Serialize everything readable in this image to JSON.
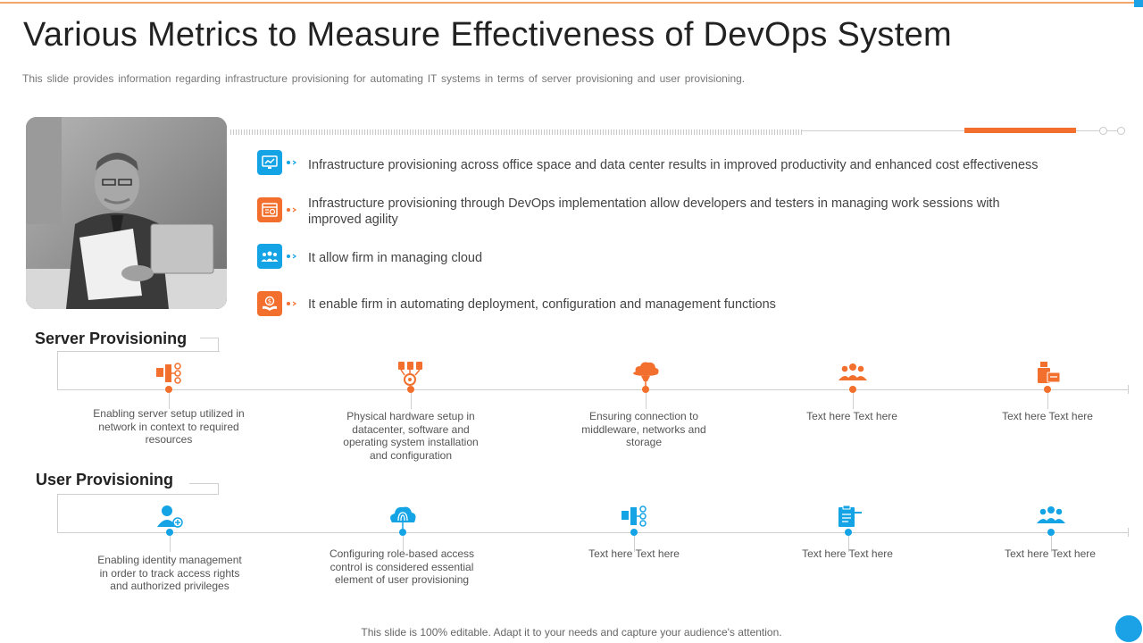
{
  "header": {
    "title": "Various Metrics to Measure Effectiveness of DevOps System",
    "subtitle": "This slide provides information regarding infrastructure provisioning for automating IT systems in terms of server provisioning and user provisioning."
  },
  "bullets": [
    {
      "icon": "monitor-chart-icon",
      "color": "#14a4e6",
      "text": "Infrastructure provisioning across office space and data center results in improved productivity and enhanced cost effectiveness"
    },
    {
      "icon": "browser-settings-icon",
      "color": "#f26f2d",
      "text": "Infrastructure provisioning through DevOps implementation allow developers and testers in managing work sessions with improved agility"
    },
    {
      "icon": "team-icon",
      "color": "#14a4e6",
      "text": "It allow firm in managing cloud"
    },
    {
      "icon": "money-hand-icon",
      "color": "#f26f2d",
      "text": "It enable firm in automating deployment, configuration and management functions"
    }
  ],
  "server_provisioning": {
    "title": "Server Provisioning",
    "color": "#f26f2d",
    "items": [
      {
        "icon": "network-devices-icon",
        "text": "Enabling server setup utilized in network in context to required resources"
      },
      {
        "icon": "hardware-setup-icon",
        "text": "Physical hardware setup in datacenter, software and operating system  installation and configuration"
      },
      {
        "icon": "cloud-connection-icon",
        "text": "Ensuring connection to middleware, networks and storage"
      },
      {
        "icon": "people-group-icon",
        "text": "Text here Text here"
      },
      {
        "icon": "server-box-icon",
        "text": "Text here Text here"
      }
    ]
  },
  "user_provisioning": {
    "title": "User Provisioning",
    "color": "#14a4e6",
    "items": [
      {
        "icon": "add-user-icon",
        "text": "Enabling identity management in order to track access rights and authorized privileges"
      },
      {
        "icon": "cloud-fingerprint-icon",
        "text": "Configuring role-based access control is considered essential element of user provisioning"
      },
      {
        "icon": "network-devices-icon",
        "text": "Text here Text here"
      },
      {
        "icon": "clipboard-tasks-icon",
        "text": "Text here Text here"
      },
      {
        "icon": "people-group-icon",
        "text": "Text here Text here"
      }
    ]
  },
  "footer": {
    "note": "This slide is 100% editable. Adapt it to your needs and capture your audience's attention."
  }
}
